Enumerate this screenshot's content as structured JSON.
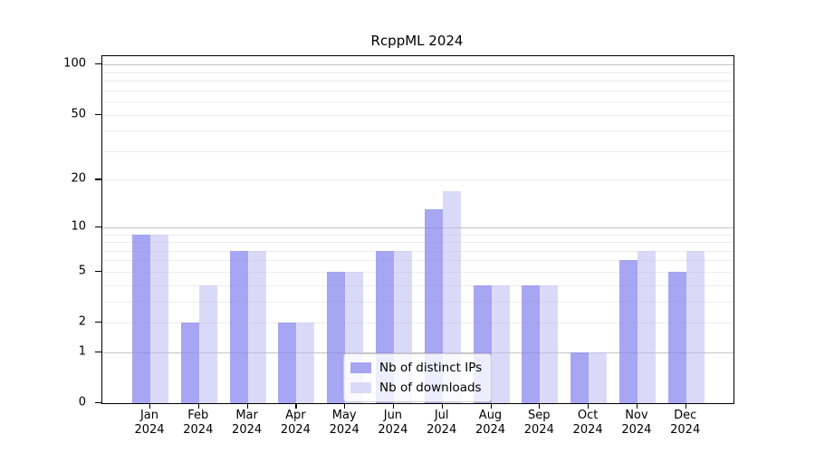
{
  "chart_data": {
    "type": "bar",
    "title": "RcppML 2024",
    "categories": [
      "Jan",
      "Feb",
      "Mar",
      "Apr",
      "May",
      "Jun",
      "Jul",
      "Aug",
      "Sep",
      "Oct",
      "Nov",
      "Dec"
    ],
    "category_year": "2024",
    "series": [
      {
        "name": "Nb of distinct IPs",
        "color_fill": "rgba(132,132,238,0.72)",
        "color_solid": "#a6a6f2",
        "values": [
          9,
          2,
          7,
          2,
          5,
          7,
          13,
          4,
          4,
          1,
          6,
          5
        ]
      },
      {
        "name": "Nb of downloads",
        "color_fill": "rgba(187,187,242,0.55)",
        "color_solid": "#d9d9f8",
        "values": [
          9,
          4,
          7,
          2,
          5,
          7,
          17,
          4,
          4,
          1,
          7,
          7
        ]
      }
    ],
    "yscale": "log1p",
    "ylim": [
      0,
      112
    ],
    "yticks": [
      0,
      1,
      2,
      5,
      10,
      20,
      50,
      100
    ],
    "ytick_labels": [
      "0",
      "1",
      "2",
      "5",
      "10",
      "20",
      "50",
      "100"
    ],
    "major_gridlines": [
      1,
      10,
      100
    ],
    "minor_gridlines": [
      2,
      3,
      4,
      5,
      6,
      7,
      8,
      9,
      20,
      30,
      40,
      50,
      60,
      70,
      80,
      90
    ],
    "grid": "on",
    "legend_position": "lower-center",
    "xlabel": "",
    "ylabel": "",
    "colors": {
      "background": "#ffffff",
      "axis": "#000000",
      "major_grid": "#c4c4c4",
      "minor_grid": "#ececec",
      "text": "#000000",
      "legend_border": "#cccccc"
    }
  }
}
